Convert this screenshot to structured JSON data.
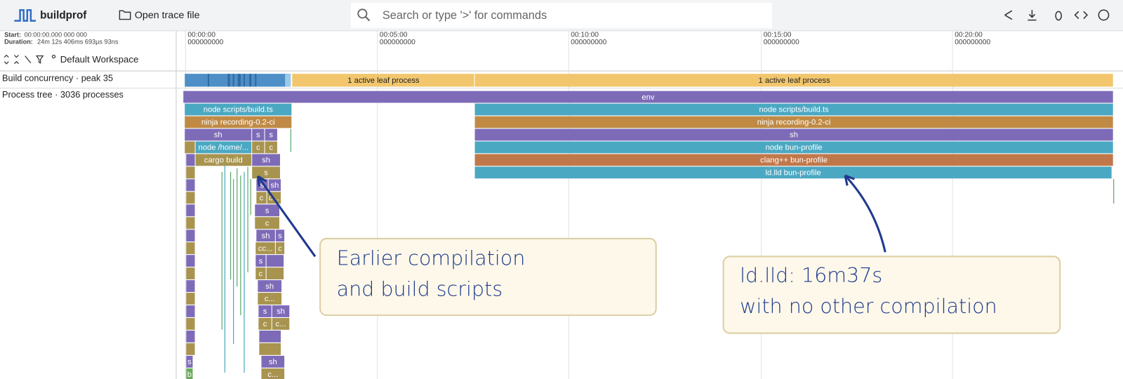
{
  "toolbar": {
    "app_name": "buildprof",
    "open_button": "Open trace file",
    "search_placeholder": "Search or type '>' for commands"
  },
  "timeline": {
    "start_label": "Start:",
    "start": "00:00:00.000 000 000",
    "duration_label": "Duration:",
    "duration": "24m 12s 406ms 693µs 93ns",
    "workspace": "Default Workspace",
    "ticks": [
      {
        "time": "00:00:00",
        "sub": "000000000"
      },
      {
        "time": "00:05:00",
        "sub": "000000000"
      },
      {
        "time": "00:10:00",
        "sub": "000000000"
      },
      {
        "time": "00:15:00",
        "sub": "000000000"
      },
      {
        "time": "00:20:00",
        "sub": "000000000"
      }
    ]
  },
  "tracks": [
    {
      "title": "Build concurrency · peak 35",
      "slices": [
        "1 active leaf process",
        "1 active leaf process"
      ]
    },
    {
      "title": "Process tree · 3036 processes",
      "slices": [
        "env",
        "node scripts/build.ts",
        "node scripts/build.ts",
        "ninja recording-0.2-ci",
        "ninja recording-0.2-ci",
        "sh",
        "s",
        "s",
        "sh",
        "node /home/...",
        "c",
        "c",
        "node bun-profile",
        "cargo build",
        "sh",
        "clang++ bun-profile",
        "ld.lld bun-profile",
        "s",
        "s",
        "sh",
        "c",
        "c...",
        "s",
        "c",
        "sh",
        "s",
        "cc...",
        "c",
        "s",
        "c",
        "sh",
        "c...",
        "s",
        "sh",
        "c",
        "c...",
        "s",
        "sh",
        "b",
        "c..."
      ]
    }
  ],
  "annotations": [
    {
      "lines": [
        "Earlier compilation",
        "and build scripts"
      ]
    },
    {
      "lines": [
        "ld.lld: 16m37s",
        "with no other compilation"
      ]
    }
  ]
}
